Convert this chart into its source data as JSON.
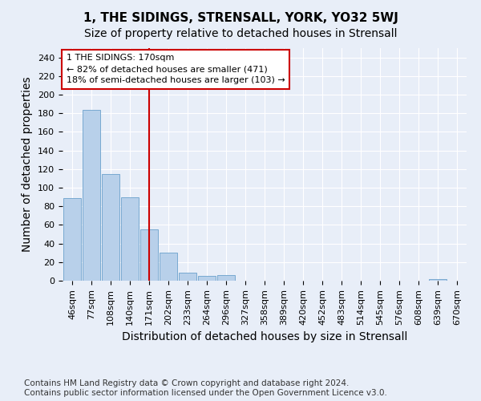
{
  "title": "1, THE SIDINGS, STRENSALL, YORK, YO32 5WJ",
  "subtitle": "Size of property relative to detached houses in Strensall",
  "xlabel": "Distribution of detached houses by size in Strensall",
  "ylabel": "Number of detached properties",
  "bar_labels": [
    "46sqm",
    "77sqm",
    "108sqm",
    "140sqm",
    "171sqm",
    "202sqm",
    "233sqm",
    "264sqm",
    "296sqm",
    "327sqm",
    "358sqm",
    "389sqm",
    "420sqm",
    "452sqm",
    "483sqm",
    "514sqm",
    "545sqm",
    "576sqm",
    "608sqm",
    "639sqm",
    "670sqm"
  ],
  "bar_values": [
    89,
    184,
    115,
    90,
    55,
    30,
    9,
    5,
    6,
    0,
    0,
    0,
    0,
    0,
    0,
    0,
    0,
    0,
    0,
    2,
    0
  ],
  "bar_color": "#b8d0ea",
  "bar_edgecolor": "#6aa0cc",
  "background_color": "#e8eef8",
  "grid_color": "#ffffff",
  "vline_index": 4,
  "vline_color": "#cc0000",
  "annotation_text": "1 THE SIDINGS: 170sqm\n← 82% of detached houses are smaller (471)\n18% of semi-detached houses are larger (103) →",
  "annotation_box_facecolor": "#ffffff",
  "annotation_box_edgecolor": "#cc0000",
  "ylim": [
    0,
    250
  ],
  "yticks": [
    0,
    20,
    40,
    60,
    80,
    100,
    120,
    140,
    160,
    180,
    200,
    220,
    240
  ],
  "footnote": "Contains HM Land Registry data © Crown copyright and database right 2024.\nContains public sector information licensed under the Open Government Licence v3.0.",
  "title_fontsize": 11,
  "subtitle_fontsize": 10,
  "axis_label_fontsize": 10,
  "tick_fontsize": 8,
  "annotation_fontsize": 8,
  "footnote_fontsize": 7.5
}
